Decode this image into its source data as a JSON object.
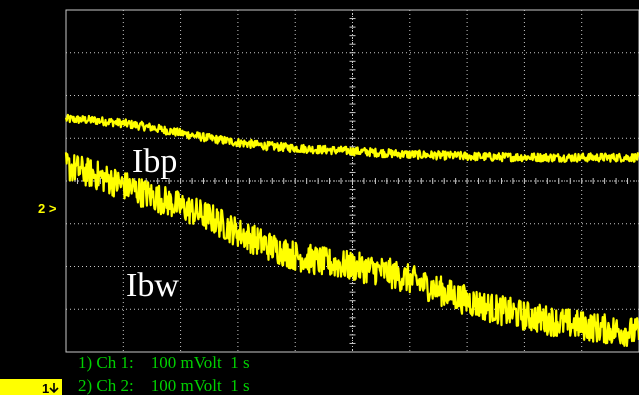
{
  "chart_data": {
    "type": "line",
    "title": "",
    "xlabel": "",
    "ylabel": "",
    "grid": true,
    "colors": {
      "background": "#000000",
      "trace": "#ffff00",
      "grid": "#c8c8c8",
      "readout": "#00d000"
    },
    "x_divisions": 10,
    "y_divisions": 8,
    "markers": {
      "ch2": "2 >",
      "ch1": "1"
    },
    "labels": {
      "ibp": "Ibp",
      "ibw": "Ibw"
    },
    "readouts": [
      {
        "text": "1) Ch 1:    100 mVolt  1 s"
      },
      {
        "text": "2) Ch 2:    100 mVolt  1 s"
      }
    ],
    "series": [
      {
        "name": "Ibp",
        "x": [
          0,
          0.5,
          1,
          1.5,
          2,
          2.5,
          3,
          3.5,
          4,
          4.5,
          5,
          5.5,
          6,
          6.5,
          7,
          7.5,
          8,
          8.5,
          9,
          9.5,
          10
        ],
        "y": [
          1.45,
          1.42,
          1.35,
          1.25,
          1.12,
          1.0,
          0.9,
          0.82,
          0.77,
          0.73,
          0.7,
          0.66,
          0.62,
          0.6,
          0.58,
          0.56,
          0.56,
          0.55,
          0.55,
          0.55,
          0.55
        ],
        "noise": 0.1
      },
      {
        "name": "Ibw",
        "x": [
          0,
          0.5,
          1,
          1.5,
          2,
          2.5,
          3,
          3.5,
          4,
          4.5,
          5,
          5.5,
          6,
          6.5,
          7,
          7.5,
          8,
          8.5,
          9,
          9.5,
          10
        ],
        "y": [
          0.35,
          0.15,
          -0.1,
          -0.35,
          -0.6,
          -0.85,
          -1.2,
          -1.5,
          -1.75,
          -1.9,
          -2.0,
          -2.1,
          -2.3,
          -2.55,
          -2.8,
          -3.0,
          -3.15,
          -3.28,
          -3.38,
          -3.48,
          -3.55
        ],
        "noise": 0.35
      }
    ]
  }
}
